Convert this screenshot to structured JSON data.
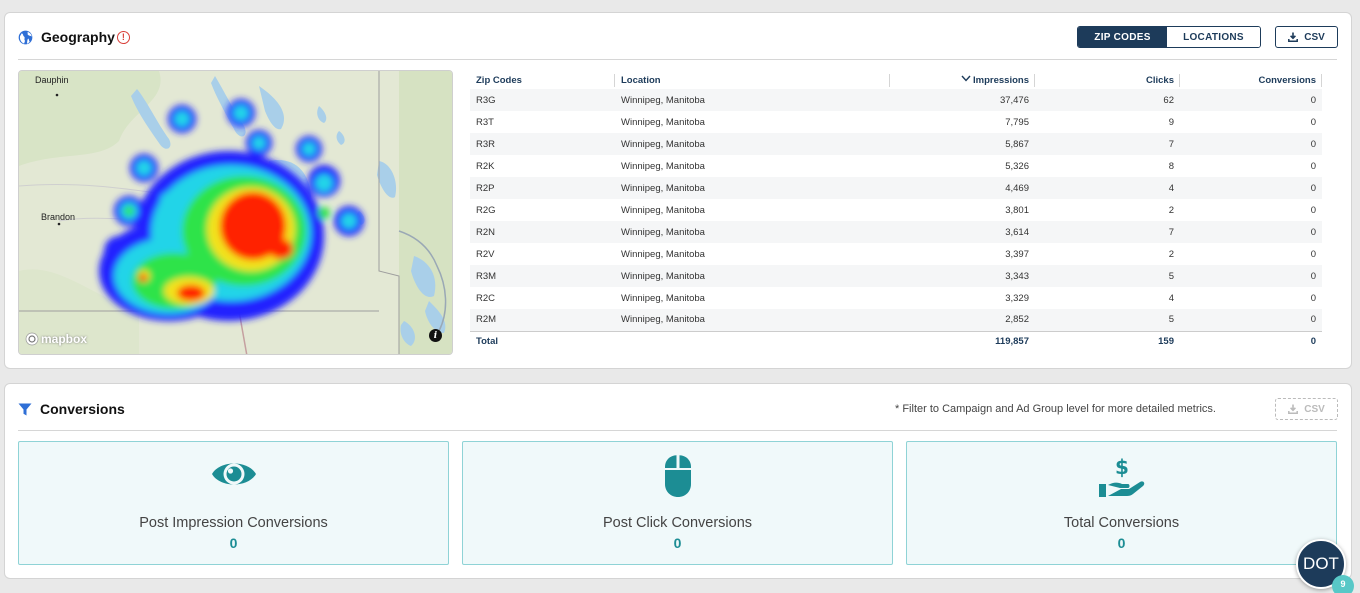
{
  "geography": {
    "title": "Geography",
    "toggle": {
      "zip_label": "ZIP CODES",
      "locations_label": "LOCATIONS"
    },
    "csv_label": "CSV",
    "map": {
      "labels": {
        "dauphin": "Dauphin",
        "brandon": "Brandon"
      },
      "attribution": "mapbox"
    },
    "table": {
      "headers": {
        "zip": "Zip Codes",
        "location": "Location",
        "impressions": "Impressions",
        "clicks": "Clicks",
        "conversions": "Conversions"
      },
      "rows": [
        {
          "zip": "R3G",
          "location": "Winnipeg, Manitoba",
          "impressions": "37,476",
          "clicks": "62",
          "conversions": "0"
        },
        {
          "zip": "R3T",
          "location": "Winnipeg, Manitoba",
          "impressions": "7,795",
          "clicks": "9",
          "conversions": "0"
        },
        {
          "zip": "R3R",
          "location": "Winnipeg, Manitoba",
          "impressions": "5,867",
          "clicks": "7",
          "conversions": "0"
        },
        {
          "zip": "R2K",
          "location": "Winnipeg, Manitoba",
          "impressions": "5,326",
          "clicks": "8",
          "conversions": "0"
        },
        {
          "zip": "R2P",
          "location": "Winnipeg, Manitoba",
          "impressions": "4,469",
          "clicks": "4",
          "conversions": "0"
        },
        {
          "zip": "R2G",
          "location": "Winnipeg, Manitoba",
          "impressions": "3,801",
          "clicks": "2",
          "conversions": "0"
        },
        {
          "zip": "R2N",
          "location": "Winnipeg, Manitoba",
          "impressions": "3,614",
          "clicks": "7",
          "conversions": "0"
        },
        {
          "zip": "R2V",
          "location": "Winnipeg, Manitoba",
          "impressions": "3,397",
          "clicks": "2",
          "conversions": "0"
        },
        {
          "zip": "R3M",
          "location": "Winnipeg, Manitoba",
          "impressions": "3,343",
          "clicks": "5",
          "conversions": "0"
        },
        {
          "zip": "R2C",
          "location": "Winnipeg, Manitoba",
          "impressions": "3,329",
          "clicks": "4",
          "conversions": "0"
        },
        {
          "zip": "R2M",
          "location": "Winnipeg, Manitoba",
          "impressions": "2,852",
          "clicks": "5",
          "conversions": "0"
        }
      ],
      "total": {
        "label": "Total",
        "impressions": "119,857",
        "clicks": "159",
        "conversions": "0"
      }
    }
  },
  "conversions": {
    "title": "Conversions",
    "note": "* Filter to Campaign and Ad Group level for more detailed metrics.",
    "csv_label": "CSV",
    "cards": [
      {
        "label": "Post Impression Conversions",
        "value": "0",
        "icon": "eye-icon"
      },
      {
        "label": "Post Click Conversions",
        "value": "0",
        "icon": "mouse-icon"
      },
      {
        "label": "Total Conversions",
        "value": "0",
        "icon": "hand-dollar-icon"
      }
    ]
  },
  "assistant": {
    "label": "DOT",
    "count": "9"
  },
  "colors": {
    "navy": "#1d3b5a",
    "teal": "#1c8d94",
    "card_border": "#8fd3d6",
    "card_bg": "#f0f9fa"
  }
}
